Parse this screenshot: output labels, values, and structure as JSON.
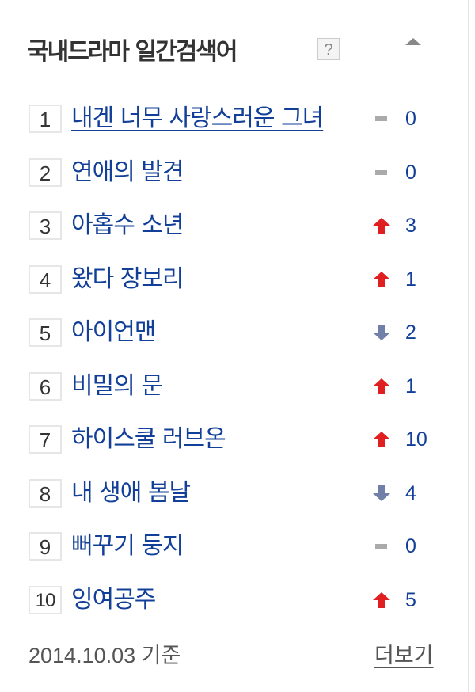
{
  "header": {
    "title": "국내드라마 일간검색어",
    "help_label": "?",
    "collapse_icon": "triangle-up-icon"
  },
  "colors": {
    "link": "#123f98",
    "up": "#e02020",
    "down": "#7080a8",
    "same": "#aaaaaa"
  },
  "items": [
    {
      "rank": "1",
      "title": "내겐 너무 사랑스러운 그녀",
      "trend": "same",
      "change": "0"
    },
    {
      "rank": "2",
      "title": "연애의 발견",
      "trend": "same",
      "change": "0"
    },
    {
      "rank": "3",
      "title": "아홉수 소년",
      "trend": "up",
      "change": "3"
    },
    {
      "rank": "4",
      "title": "왔다 장보리",
      "trend": "up",
      "change": "1"
    },
    {
      "rank": "5",
      "title": "아이언맨",
      "trend": "down",
      "change": "2"
    },
    {
      "rank": "6",
      "title": "비밀의 문",
      "trend": "up",
      "change": "1"
    },
    {
      "rank": "7",
      "title": "하이스쿨 러브온",
      "trend": "up",
      "change": "10"
    },
    {
      "rank": "8",
      "title": "내 생애 봄날",
      "trend": "down",
      "change": "4"
    },
    {
      "rank": "9",
      "title": "뻐꾸기 둥지",
      "trend": "same",
      "change": "0"
    },
    {
      "rank": "10",
      "title": "잉여공주",
      "trend": "up",
      "change": "5"
    }
  ],
  "footer": {
    "date": "2014.10.03 기준",
    "more_label": "더보기"
  }
}
